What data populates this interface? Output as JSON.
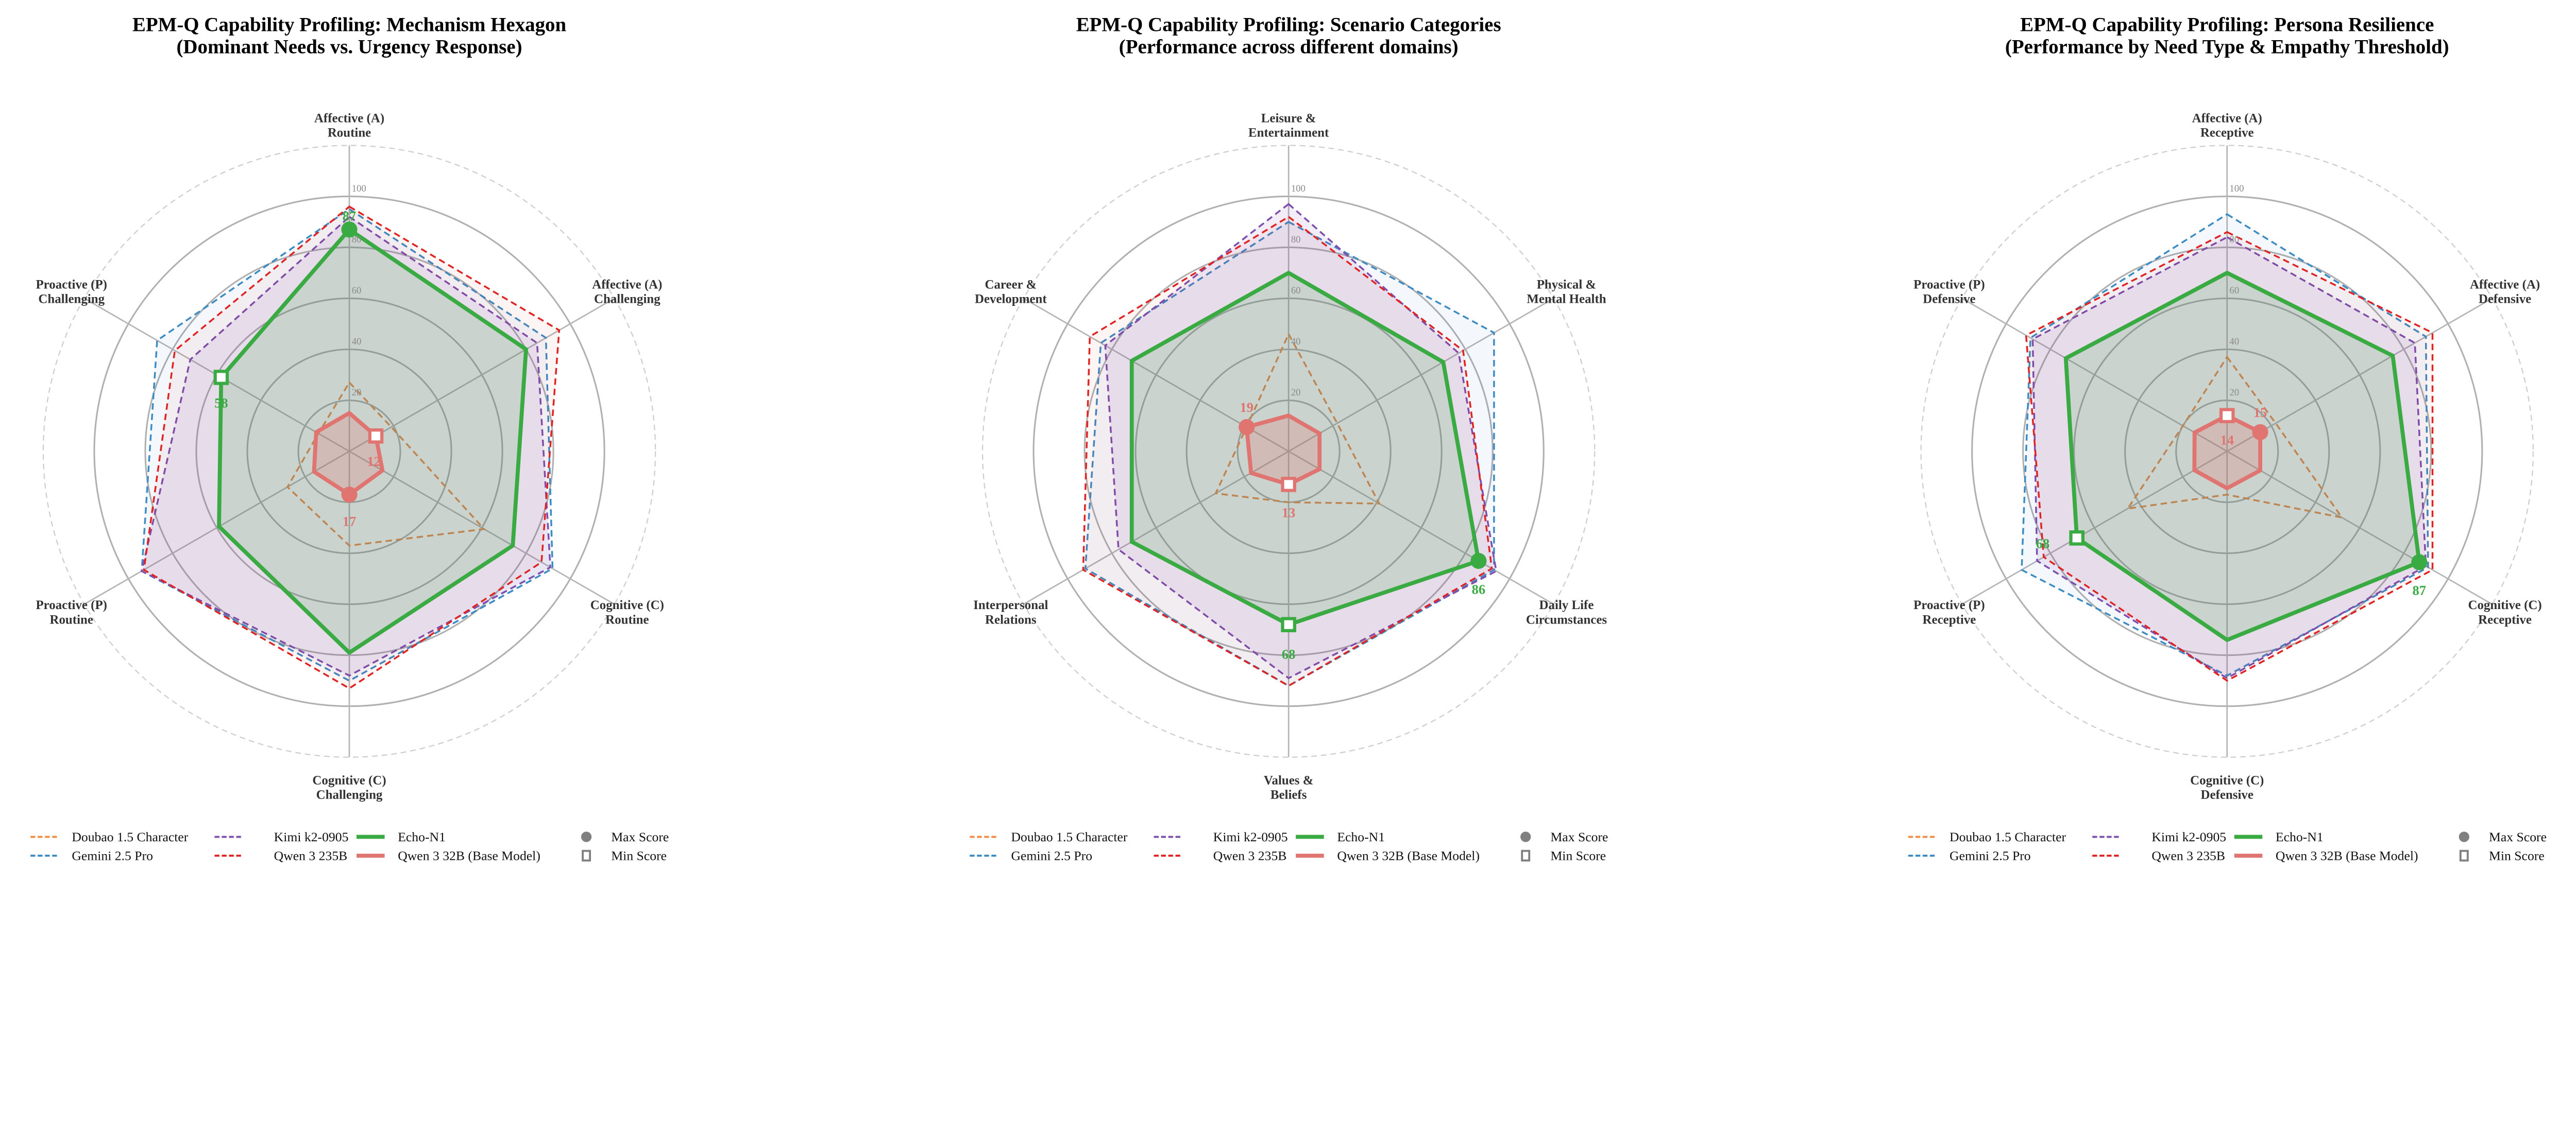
{
  "legend": {
    "entries": [
      {
        "name": "Doubao 1.5 Character",
        "color": "#f08c46",
        "style": "dashed"
      },
      {
        "name": "Gemini 2.5 Pro",
        "color": "#3d8cc4",
        "style": "dashed"
      },
      {
        "name": "Kimi k2-0905",
        "color": "#7d4fae",
        "style": "dashed"
      },
      {
        "name": "Qwen 3 235B",
        "color": "#e02424",
        "style": "dashed"
      },
      {
        "name": "Echo-N1",
        "color": "#3aaa42",
        "style": "solid"
      },
      {
        "name": "Qwen 3 32B (Base Model)",
        "color": "#e07470",
        "style": "solid"
      }
    ],
    "max_label": "Max Score",
    "min_label": "Min Score",
    "marker_color": "#808080"
  },
  "chart_data": [
    {
      "type": "radar",
      "title": [
        "EPM-Q Capability Profiling: Mechanism Hexagon",
        "(Dominant Needs vs. Urgency Response)"
      ],
      "axes": [
        [
          "Affective (A)",
          "Routine"
        ],
        [
          "Affective (A)",
          "Challenging"
        ],
        [
          "Cognitive (C)",
          "Routine"
        ],
        [
          "Cognitive (C)",
          "Challenging"
        ],
        [
          "Proactive (P)",
          "Routine"
        ],
        [
          "Proactive (P)",
          "Challenging"
        ]
      ],
      "r_ticks": [
        "20",
        "40",
        "60",
        "80",
        "100"
      ],
      "rlim": [
        0,
        120
      ],
      "grid": true,
      "legend_position": "bottom",
      "series": [
        {
          "name": "Doubao 1.5 Character",
          "values": [
            27,
            19,
            61,
            37,
            28,
            14
          ]
        },
        {
          "name": "Gemini 2.5 Pro",
          "values": [
            95,
            89,
            92,
            90,
            94,
            87
          ]
        },
        {
          "name": "Kimi k2-0905",
          "values": [
            92,
            85,
            91,
            88,
            94,
            72
          ]
        },
        {
          "name": "Qwen 3 235B",
          "values": [
            96,
            95,
            87,
            93,
            93,
            79
          ]
        },
        {
          "name": "Echo-N1",
          "values": [
            87,
            80,
            74,
            79,
            59,
            58
          ]
        },
        {
          "name": "Qwen 3 32B (Base Model)",
          "values": [
            15,
            12,
            15,
            17,
            16,
            15
          ]
        }
      ]
    },
    {
      "type": "radar",
      "title": [
        "EPM-Q Capability Profiling: Scenario Categories",
        "(Performance across different domains)"
      ],
      "axes": [
        [
          "Leisure &",
          "Entertainment"
        ],
        [
          "Physical &",
          "Mental Health"
        ],
        [
          "Daily Life",
          "Circumstances"
        ],
        [
          "Values &",
          "Beliefs"
        ],
        [
          "Interpersonal",
          "Relations"
        ],
        [
          "Career &",
          "Development"
        ]
      ],
      "r_ticks": [
        "20",
        "40",
        "60",
        "80",
        "100"
      ],
      "rlim": [
        0,
        120
      ],
      "grid": true,
      "legend_position": "bottom",
      "series": [
        {
          "name": "Doubao 1.5 Character",
          "values": [
            46,
            22,
            41,
            20,
            33,
            19
          ]
        },
        {
          "name": "Gemini 2.5 Pro",
          "values": [
            90,
            93,
            93,
            92,
            92,
            85
          ]
        },
        {
          "name": "Kimi k2-0905",
          "values": [
            97,
            77,
            94,
            89,
            77,
            83
          ]
        },
        {
          "name": "Qwen 3 235B",
          "values": [
            92,
            79,
            92,
            92,
            93,
            90
          ]
        },
        {
          "name": "Echo-N1",
          "values": [
            70,
            70,
            86,
            68,
            71,
            71
          ]
        },
        {
          "name": "Qwen 3 32B (Base Model)",
          "values": [
            14,
            14,
            14,
            13,
            17,
            19
          ]
        }
      ]
    },
    {
      "type": "radar",
      "title": [
        "EPM-Q Capability Profiling: Persona Resilience",
        "(Performance by Need Type & Empathy Threshold)"
      ],
      "axes": [
        [
          "Affective (A)",
          "Receptive"
        ],
        [
          "Affective (A)",
          "Defensive"
        ],
        [
          "Cognitive (C)",
          "Receptive"
        ],
        [
          "Cognitive (C)",
          "Defensive"
        ],
        [
          "Proactive (P)",
          "Receptive"
        ],
        [
          "Proactive (P)",
          "Defensive"
        ]
      ],
      "r_ticks": [
        "20",
        "40",
        "60",
        "80",
        "100"
      ],
      "rlim": [
        0,
        120
      ],
      "grid": true,
      "legend_position": "bottom",
      "series": [
        {
          "name": "Doubao 1.5 Character",
          "values": [
            37,
            22,
            52,
            17,
            45,
            20
          ]
        },
        {
          "name": "Gemini 2.5 Pro",
          "values": [
            93,
            90,
            91,
            88,
            93,
            89
          ]
        },
        {
          "name": "Kimi k2-0905",
          "values": [
            84,
            85,
            90,
            89,
            86,
            88
          ]
        },
        {
          "name": "Qwen 3 235B",
          "values": [
            86,
            93,
            93,
            90,
            83,
            91
          ]
        },
        {
          "name": "Echo-N1",
          "values": [
            70,
            75,
            87,
            74,
            68,
            73
          ]
        },
        {
          "name": "Qwen 3 32B (Base Model)",
          "values": [
            14,
            15,
            15,
            14.5,
            14.8,
            14.7
          ]
        }
      ]
    }
  ]
}
